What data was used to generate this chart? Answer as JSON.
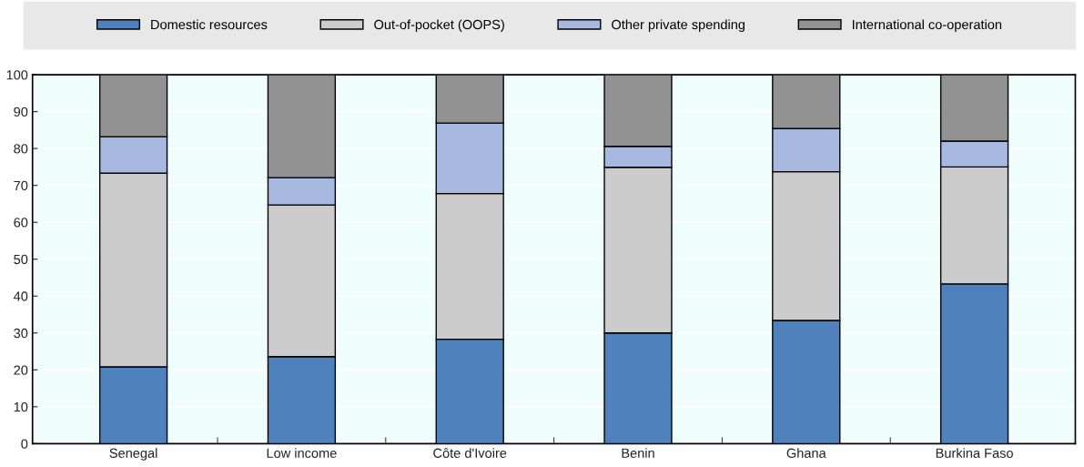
{
  "chart_data": {
    "type": "bar",
    "stacked": true,
    "categories": [
      "Senegal",
      "Low income",
      "Côte d'Ivoire",
      "Benin",
      "Ghana",
      "Burkina Faso"
    ],
    "series": [
      {
        "name": "Domestic resources",
        "color": "#4f81bd",
        "values": [
          20.8,
          23.6,
          28.3,
          30.0,
          33.4,
          43.3
        ]
      },
      {
        "name": "Out-of-pocket (OOPS)",
        "color": "#cccccc",
        "values": [
          52.5,
          41.1,
          39.5,
          44.9,
          40.3,
          31.7
        ]
      },
      {
        "name": "Other private spending",
        "color": "#a7b8e1",
        "values": [
          9.9,
          7.4,
          19.1,
          5.7,
          11.7,
          7.0
        ]
      },
      {
        "name": "International co-operation",
        "color": "#929292",
        "values": [
          16.8,
          27.9,
          13.1,
          19.4,
          14.6,
          18.0
        ]
      }
    ],
    "ylim": [
      0,
      100
    ],
    "yticks": [
      0,
      10,
      20,
      30,
      40,
      50,
      60,
      70,
      80,
      90,
      100
    ],
    "grid": "y",
    "legend": "top"
  }
}
